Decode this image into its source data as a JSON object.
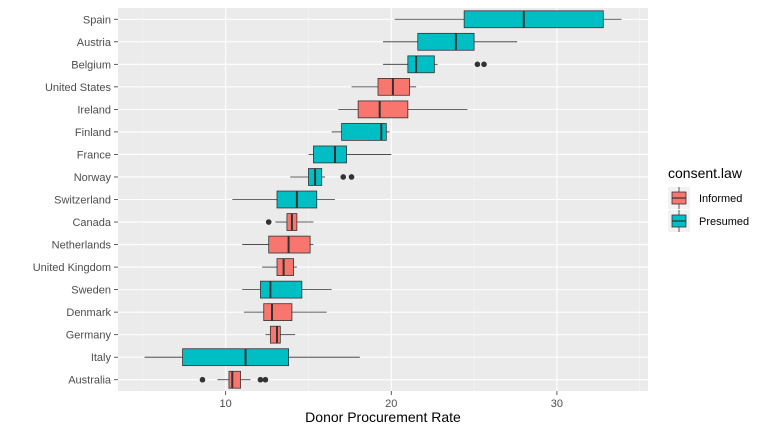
{
  "chart_data": {
    "type": "boxplot",
    "orientation": "horizontal",
    "xlabel": "Donor Procurement Rate",
    "ylabel": "",
    "xlim": [
      3.5,
      35.5
    ],
    "x_ticks": [
      10,
      20,
      30
    ],
    "grid": true,
    "legend": {
      "title": "consent.law",
      "position": "right",
      "entries": [
        {
          "label": "Informed",
          "color": "#F8766D"
        },
        {
          "label": "Presumed",
          "color": "#00BFC4"
        }
      ]
    },
    "categories": [
      "Spain",
      "Austria",
      "Belgium",
      "United States",
      "Ireland",
      "Finland",
      "France",
      "Norway",
      "Switzerland",
      "Canada",
      "Netherlands",
      "United Kingdom",
      "Sweden",
      "Denmark",
      "Germany",
      "Italy",
      "Australia"
    ],
    "boxes": [
      {
        "country": "Spain",
        "consent": "Presumed",
        "min": 20.2,
        "q1": 24.4,
        "median": 28.0,
        "q3": 32.8,
        "max": 33.9,
        "outliers": []
      },
      {
        "country": "Austria",
        "consent": "Presumed",
        "min": 19.5,
        "q1": 21.6,
        "median": 23.9,
        "q3": 25.0,
        "max": 27.6,
        "outliers": []
      },
      {
        "country": "Belgium",
        "consent": "Presumed",
        "min": 19.5,
        "q1": 21.0,
        "median": 21.5,
        "q3": 22.6,
        "max": 22.8,
        "outliers": [
          25.2,
          25.6
        ]
      },
      {
        "country": "United States",
        "consent": "Informed",
        "min": 17.6,
        "q1": 19.2,
        "median": 20.1,
        "q3": 21.1,
        "max": 21.5,
        "outliers": []
      },
      {
        "country": "Ireland",
        "consent": "Informed",
        "min": 16.8,
        "q1": 18.0,
        "median": 19.3,
        "q3": 21.0,
        "max": 24.6,
        "outliers": []
      },
      {
        "country": "Finland",
        "consent": "Presumed",
        "min": 16.4,
        "q1": 17.0,
        "median": 19.4,
        "q3": 19.7,
        "max": 19.9,
        "outliers": []
      },
      {
        "country": "France",
        "consent": "Presumed",
        "min": 15.0,
        "q1": 15.3,
        "median": 16.6,
        "q3": 17.3,
        "max": 20.0,
        "outliers": []
      },
      {
        "country": "Norway",
        "consent": "Presumed",
        "min": 13.9,
        "q1": 15.0,
        "median": 15.4,
        "q3": 15.8,
        "max": 16.0,
        "outliers": [
          17.1,
          17.6
        ]
      },
      {
        "country": "Switzerland",
        "consent": "Presumed",
        "min": 10.4,
        "q1": 13.1,
        "median": 14.3,
        "q3": 15.5,
        "max": 16.6,
        "outliers": []
      },
      {
        "country": "Canada",
        "consent": "Informed",
        "min": 13.0,
        "q1": 13.7,
        "median": 14.0,
        "q3": 14.3,
        "max": 15.3,
        "outliers": [
          12.6
        ]
      },
      {
        "country": "Netherlands",
        "consent": "Informed",
        "min": 11.0,
        "q1": 12.6,
        "median": 13.8,
        "q3": 15.1,
        "max": 15.3,
        "outliers": []
      },
      {
        "country": "United Kingdom",
        "consent": "Informed",
        "min": 12.2,
        "q1": 13.1,
        "median": 13.5,
        "q3": 14.1,
        "max": 14.3,
        "outliers": []
      },
      {
        "country": "Sweden",
        "consent": "Presumed",
        "min": 11.0,
        "q1": 12.1,
        "median": 12.7,
        "q3": 14.6,
        "max": 16.4,
        "outliers": []
      },
      {
        "country": "Denmark",
        "consent": "Informed",
        "min": 11.1,
        "q1": 12.3,
        "median": 12.8,
        "q3": 14.0,
        "max": 16.1,
        "outliers": []
      },
      {
        "country": "Germany",
        "consent": "Informed",
        "min": 12.4,
        "q1": 12.7,
        "median": 13.1,
        "q3": 13.3,
        "max": 14.2,
        "outliers": []
      },
      {
        "country": "Italy",
        "consent": "Presumed",
        "min": 5.1,
        "q1": 7.4,
        "median": 11.2,
        "q3": 13.8,
        "max": 18.1,
        "outliers": []
      },
      {
        "country": "Australia",
        "consent": "Informed",
        "min": 9.5,
        "q1": 10.2,
        "median": 10.4,
        "q3": 10.9,
        "max": 11.5,
        "outliers": [
          8.6,
          12.1,
          12.4
        ]
      }
    ]
  }
}
